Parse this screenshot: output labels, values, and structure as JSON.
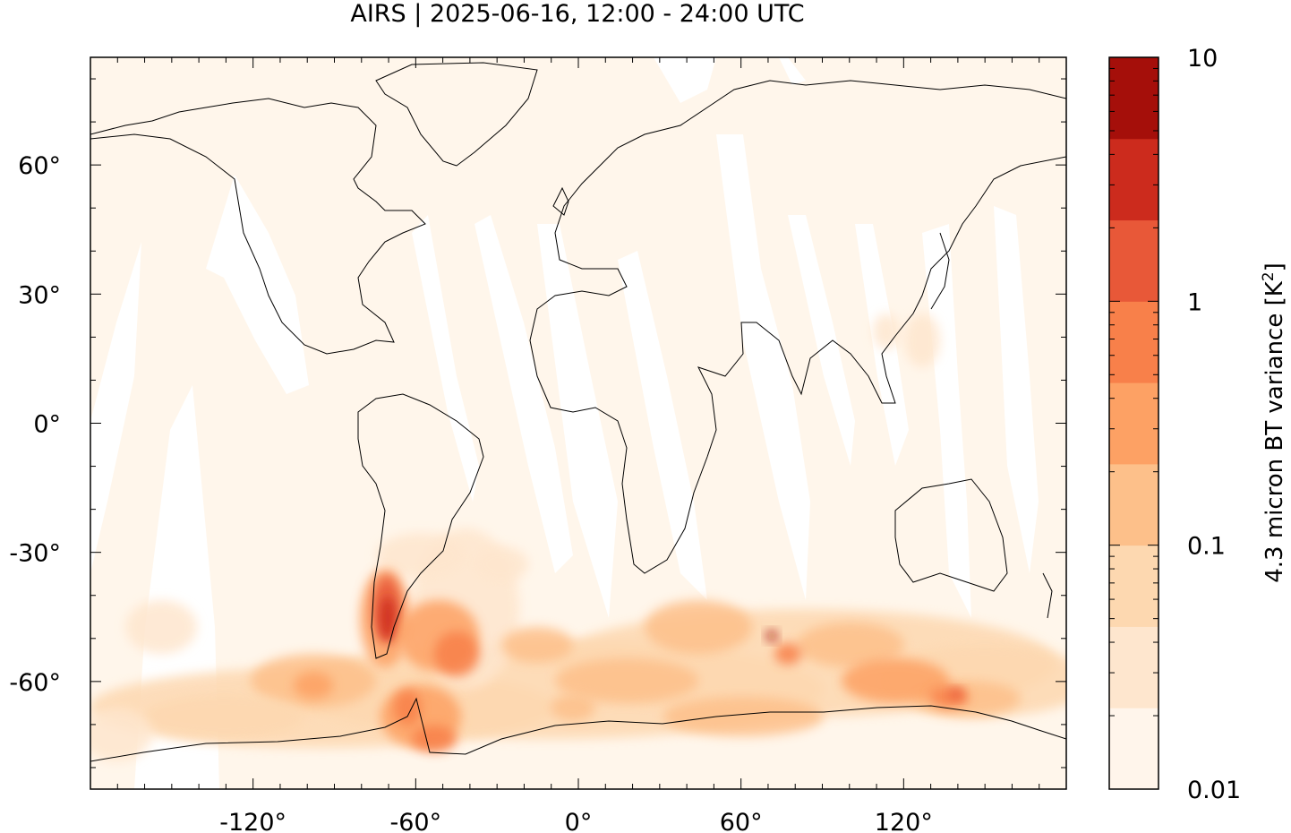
{
  "title": "AIRS | 2025-06-16, 12:00 - 24:00 UTC",
  "map": {
    "lon_range": [
      -180,
      180
    ],
    "lat_range": [
      -85,
      85
    ],
    "background_color": "#fff6eb",
    "gap_color": "#ffffff",
    "x_ticks": [
      {
        "value": -120,
        "label": "-120°"
      },
      {
        "value": -60,
        "label": "-60°"
      },
      {
        "value": 0,
        "label": "0°"
      },
      {
        "value": 60,
        "label": "60°"
      },
      {
        "value": 120,
        "label": "120°"
      }
    ],
    "y_ticks": [
      {
        "value": 60,
        "label": "60°"
      },
      {
        "value": 30,
        "label": "30°"
      },
      {
        "value": 0,
        "label": "0°"
      },
      {
        "value": -30,
        "label": "-30°"
      },
      {
        "value": -60,
        "label": "-60°"
      }
    ]
  },
  "colorbar": {
    "label": "4.3 micron BT variance [K",
    "label_superscript": "2",
    "label_close": "]",
    "scale": "log",
    "range": [
      0.01,
      10
    ],
    "tick_labels": [
      {
        "value": 10,
        "label": "10"
      },
      {
        "value": 1,
        "label": "1"
      },
      {
        "value": 0.1,
        "label": "0.1"
      },
      {
        "value": 0.01,
        "label": "0.01"
      }
    ],
    "colors": [
      "#fff5eb",
      "#fee6ce",
      "#fdd8b0",
      "#fdc08a",
      "#fda164",
      "#f8804a",
      "#e85838",
      "#cc2b1d",
      "#a50f0a"
    ]
  }
}
